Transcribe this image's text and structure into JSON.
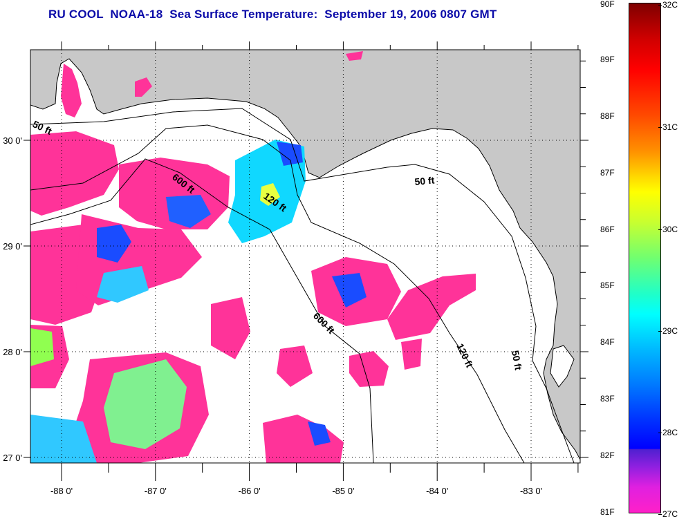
{
  "title": "RU COOL  NOAA-18  Sea Surface Temperature:  September 19, 2006 0807 GMT",
  "axes": {
    "longitude_labels": [
      "-88 0'",
      "-87 0'",
      "-86 0'",
      "-85 0'",
      "-84 0'",
      "-83 0'"
    ],
    "longitude_values": [
      -88,
      -87,
      -86,
      -85,
      -84,
      -83
    ],
    "latitude_labels": [
      "27 0'",
      "28 0'",
      "29 0'",
      "30 0'"
    ],
    "latitude_values": [
      27,
      28,
      29,
      30
    ],
    "lon_range": [
      -88.33,
      -82.48
    ],
    "lat_range": [
      26.95,
      30.9
    ]
  },
  "contour_labels": {
    "c50_west": "50 ft",
    "c600_north": "600 ft",
    "c120_north": "120 ft",
    "c50_north": "50 ft",
    "c600_south": "600 ft",
    "c120_south": "120 ft",
    "c50_south": "50 ft"
  },
  "colorbar": {
    "fahrenheit_labels": [
      "90F",
      "89F",
      "88F",
      "87F",
      "86F",
      "85F",
      "84F",
      "83F",
      "82F",
      "81F"
    ],
    "celsius_labels": [
      "32C",
      "31C",
      "30C",
      "29C",
      "28C",
      "27C"
    ],
    "range_f": [
      81,
      90
    ],
    "range_c": [
      27,
      32
    ]
  },
  "colors": {
    "title": "#0a0aa8",
    "land": "#c8c8c8",
    "sst_pink": "#ff3399",
    "sst_blue": "#1a4cff",
    "sst_cyan": "#10d8ff",
    "sst_green": "#90ff50",
    "sst_yellow": "#ffff40"
  }
}
